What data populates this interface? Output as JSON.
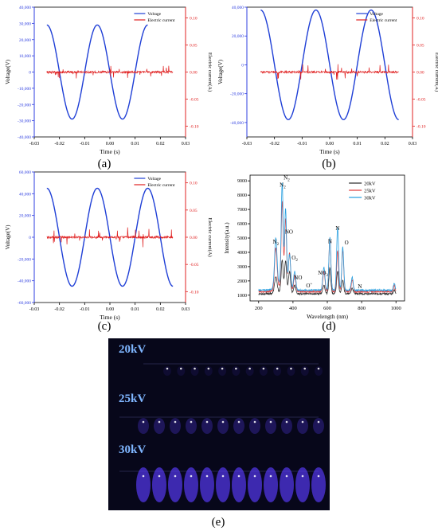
{
  "panels": {
    "a": "(a)",
    "b": "(b)",
    "c": "(c)",
    "d": "(d)",
    "e": "(e)"
  },
  "colors": {
    "voltage": "#1f3fd6",
    "current": "#e02020",
    "left_axis": "#2f3fe0",
    "right_axis": "#e02020",
    "s20": "#333333",
    "s25": "#e04040",
    "s30": "#2aa0e0",
    "photo_bg": "#07071a",
    "photo_label": "#7fb6ff",
    "plasma": "#5a3cff"
  },
  "photo": {
    "labels": [
      "20kV",
      "25kV",
      "30kV"
    ]
  },
  "chart_data": [
    {
      "id": "a",
      "type": "line",
      "xlabel": "Time (s)",
      "ylabel": "Voltage(V)",
      "ylabel_right": "Electric current(A)",
      "xlim": [
        -0.03,
        0.03
      ],
      "ylim": [
        -40000,
        40000
      ],
      "ylim_right": [
        -0.12,
        0.12
      ],
      "xticks": [
        "-0.03",
        "-0.02",
        "-0.01",
        "0.00",
        "0.01",
        "0.02",
        "0.03"
      ],
      "yticks": [
        "-40,000",
        "-30,000",
        "-20,000",
        "-10,000",
        "0",
        "10,000",
        "20,000",
        "30,000",
        "40,000"
      ],
      "yticks_right": [
        "-0.10",
        "-0.05",
        "0.00",
        "0.05",
        "0.10"
      ],
      "legend": [
        "Voltage",
        "Electric current"
      ],
      "series": [
        {
          "name": "Voltage",
          "x": [
            -0.025,
            0.015
          ],
          "amplitude": 29000,
          "frequency": 50,
          "phase_deg": 180
        },
        {
          "name": "Electric current",
          "x": [
            -0.025,
            0.025
          ],
          "noise_amplitude": 0.004,
          "spike_max": 0.012
        }
      ]
    },
    {
      "id": "b",
      "type": "line",
      "xlabel": "Time (s)",
      "ylabel": "Voltage(V)",
      "ylabel_right": "Electric current(A)",
      "xlim": [
        -0.03,
        0.03
      ],
      "ylim": [
        -50000,
        40000
      ],
      "ylim_right": [
        -0.12,
        0.12
      ],
      "xticks": [
        "-0.03",
        "-0.02",
        "-0.01",
        "0.00",
        "0.01",
        "0.02",
        "0.03"
      ],
      "yticks": [
        "-40,000",
        "-20,000",
        "0",
        "20,000",
        "40,000"
      ],
      "yticks_right": [
        "-0.10",
        "-0.05",
        "0.00",
        "0.05",
        "0.10"
      ],
      "legend": [
        "Voltage",
        "Electric current"
      ],
      "series": [
        {
          "name": "Voltage",
          "x": [
            -0.025,
            0.025
          ],
          "amplitude": 38000,
          "frequency": 50,
          "phase_deg": 180
        },
        {
          "name": "Electric current",
          "x": [
            -0.025,
            0.025
          ],
          "noise_amplitude": 0.004,
          "spike_max": 0.015
        }
      ]
    },
    {
      "id": "c",
      "type": "line",
      "xlabel": "Time (s)",
      "ylabel": "Voltage(V)",
      "ylabel_right": "Electric current(A)",
      "xlim": [
        -0.03,
        0.03
      ],
      "ylim": [
        -60000,
        60000
      ],
      "ylim_right": [
        -0.12,
        0.12
      ],
      "xticks": [
        "-0.03",
        "-0.02",
        "-0.01",
        "0.00",
        "0.01",
        "0.02",
        "0.03"
      ],
      "yticks": [
        "-60,000",
        "-40,000",
        "-20,000",
        "0",
        "20,000",
        "40,000",
        "60,000"
      ],
      "yticks_right": [
        "-0.10",
        "-0.05",
        "0.00",
        "0.05",
        "0.10"
      ],
      "legend": [
        "Voltage",
        "Electric current"
      ],
      "series": [
        {
          "name": "Voltage",
          "x": [
            -0.025,
            0.025
          ],
          "amplitude": 45000,
          "frequency": 50,
          "phase_deg": 180
        },
        {
          "name": "Electric current",
          "x": [
            -0.025,
            0.025
          ],
          "noise_amplitude": 0.004,
          "spike_max": 0.02
        }
      ]
    },
    {
      "id": "d",
      "type": "line",
      "xlabel": "Wavelength (nm)",
      "ylabel": "Intensity(a.u.)",
      "xlim": [
        150,
        1050
      ],
      "ylim": [
        600,
        9400
      ],
      "xticks": [
        200,
        400,
        600,
        800,
        1000
      ],
      "yticks": [
        1000,
        2000,
        3000,
        4000,
        5000,
        6000,
        7000,
        8000,
        9000
      ],
      "legend": [
        "20kV",
        "25kV",
        "30kV"
      ],
      "baseline": [
        1100,
        1250,
        1350
      ],
      "peaks": [
        {
          "wl": 300,
          "heights": [
            1100,
            2900,
            3400
          ],
          "width": 10
        },
        {
          "wl": 337,
          "heights": [
            2200,
            6000,
            7000
          ],
          "width": 8
        },
        {
          "wl": 357,
          "heights": [
            2200,
            4900,
            5400
          ],
          "width": 8
        },
        {
          "wl": 380,
          "heights": [
            1500,
            2600,
            2400
          ],
          "width": 9
        },
        {
          "wl": 410,
          "heights": [
            600,
            1100,
            1300
          ],
          "width": 9
        },
        {
          "wl": 580,
          "heights": [
            600,
            1400,
            1600
          ],
          "width": 9
        },
        {
          "wl": 615,
          "heights": [
            1800,
            3800,
            3700
          ],
          "width": 8
        },
        {
          "wl": 660,
          "heights": [
            1600,
            2900,
            4400
          ],
          "width": 8
        },
        {
          "wl": 690,
          "heights": [
            1000,
            2900,
            3000
          ],
          "width": 8
        },
        {
          "wl": 745,
          "heights": [
            400,
            800,
            900
          ],
          "width": 8
        },
        {
          "wl": 990,
          "heights": [
            250,
            450,
            500
          ],
          "width": 7
        }
      ],
      "annotations": [
        {
          "text": "N",
          "sub": "2",
          "wl": 300,
          "y": 4600
        },
        {
          "text": "N",
          "sub": "2",
          "wl": 340,
          "y": 8600
        },
        {
          "text": "N",
          "sub": "2",
          "wl": 363,
          "y": 9100
        },
        {
          "text": "NO",
          "sub": "",
          "wl": 377,
          "y": 5300
        },
        {
          "text": "O",
          "sub": "2",
          "wl": 410,
          "y": 3500
        },
        {
          "text": "NO",
          "sub": "",
          "wl": 430,
          "y": 2100
        },
        {
          "text": "O",
          "sup": "+",
          "wl": 495,
          "y": 1550
        },
        {
          "text": "NO",
          "sub": "3",
          "wl": 575,
          "y": 2450
        },
        {
          "text": "N",
          "sub": "",
          "wl": 616,
          "y": 4650
        },
        {
          "text": "N",
          "sub": "",
          "wl": 660,
          "y": 5550
        },
        {
          "text": "O",
          "sub": "",
          "wl": 712,
          "y": 4550
        },
        {
          "text": "N",
          "sub": "",
          "wl": 790,
          "y": 1500
        }
      ]
    }
  ]
}
